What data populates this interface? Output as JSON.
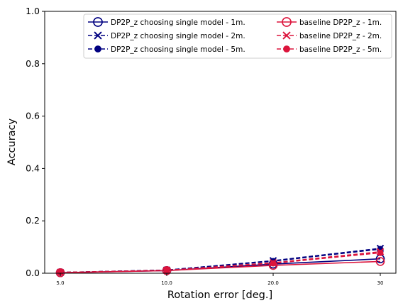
{
  "chart_data": {
    "type": "line",
    "xlabel": "Rotation error [deg.]",
    "ylabel": "Accuracy",
    "ylim": [
      0,
      1.0
    ],
    "grid": false,
    "legend_placement": "top-right",
    "legend_columns": 2,
    "x_categories": [
      "5.0",
      "10.0",
      "20.0",
      "30"
    ],
    "y_ticks": [
      "0.0",
      "0.2",
      "0.4",
      "0.6",
      "0.8",
      "1.0"
    ],
    "series": [
      {
        "name": "DP2P_z choosing single model - 1m.",
        "color": "#000080",
        "linestyle": "solid",
        "marker": "open-circle",
        "values": [
          0.002,
          0.01,
          0.035,
          0.055
        ]
      },
      {
        "name": "DP2P_z choosing single model - 2m.",
        "color": "#000080",
        "linestyle": "dashed",
        "marker": "x",
        "values": [
          0.003,
          0.012,
          0.048,
          0.095
        ]
      },
      {
        "name": "DP2P_z choosing single model - 5m.",
        "color": "#000080",
        "linestyle": "dashed",
        "marker": "dot",
        "values": [
          0.003,
          0.012,
          0.046,
          0.092
        ]
      },
      {
        "name": "baseline DP2P_z - 1m.",
        "color": "#dc143c",
        "linestyle": "solid",
        "marker": "open-circle",
        "values": [
          0.002,
          0.01,
          0.03,
          0.045
        ]
      },
      {
        "name": "baseline DP2P_z - 2m.",
        "color": "#dc143c",
        "linestyle": "dashed",
        "marker": "x",
        "values": [
          0.003,
          0.011,
          0.04,
          0.082
        ]
      },
      {
        "name": "baseline DP2P_z - 5m.",
        "color": "#dc143c",
        "linestyle": "dashed",
        "marker": "dot",
        "values": [
          0.003,
          0.011,
          0.038,
          0.078
        ]
      }
    ]
  }
}
